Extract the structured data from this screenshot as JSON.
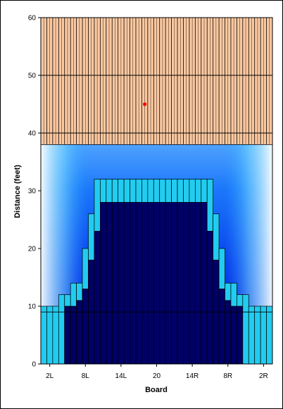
{
  "chart_data": {
    "type": "heatmap",
    "title": "",
    "xlabel": "Board",
    "ylabel": "Distance (feet)",
    "ylim": [
      0,
      60
    ],
    "yticks": [
      0,
      10,
      20,
      30,
      40,
      50,
      60
    ],
    "board_count": 39,
    "xticks": [
      {
        "board_index": 1,
        "label": "2L"
      },
      {
        "board_index": 7,
        "label": "8L"
      },
      {
        "board_index": 13,
        "label": "14L"
      },
      {
        "board_index": 19,
        "label": "20"
      },
      {
        "board_index": 25,
        "label": "14R"
      },
      {
        "board_index": 31,
        "label": "8R"
      },
      {
        "board_index": 37,
        "label": "2R"
      }
    ],
    "pin_deck": {
      "from": 38,
      "to": 60,
      "color": "#fcc8a0",
      "line_color": "#000000"
    },
    "gradient_top": 38,
    "grid_lines": [
      40,
      50
    ],
    "core_line": 9,
    "colors": {
      "core": "#000066",
      "step": "#22ccf0",
      "lane_bottom": "#0000dd",
      "lane_edge": "#e0faff"
    },
    "marker": {
      "board": 17,
      "distance": 45,
      "color": "#ff0000"
    },
    "board_profile": [
      {
        "core": 0,
        "step": 10
      },
      {
        "core": 0,
        "step": 10
      },
      {
        "core": 0,
        "step": 10
      },
      {
        "core": 0,
        "step": 12
      },
      {
        "core": 10,
        "step": 12
      },
      {
        "core": 10,
        "step": 14
      },
      {
        "core": 11,
        "step": 14
      },
      {
        "core": 13,
        "step": 20
      },
      {
        "core": 18,
        "step": 26
      },
      {
        "core": 23,
        "step": 32
      },
      {
        "core": 28,
        "step": 32
      },
      {
        "core": 28,
        "step": 32
      },
      {
        "core": 28,
        "step": 32
      },
      {
        "core": 28,
        "step": 32
      },
      {
        "core": 28,
        "step": 32
      },
      {
        "core": 28,
        "step": 32
      },
      {
        "core": 28,
        "step": 32
      },
      {
        "core": 28,
        "step": 32
      },
      {
        "core": 28,
        "step": 32
      },
      {
        "core": 28,
        "step": 32
      },
      {
        "core": 28,
        "step": 32
      },
      {
        "core": 28,
        "step": 32
      },
      {
        "core": 28,
        "step": 32
      },
      {
        "core": 28,
        "step": 32
      },
      {
        "core": 28,
        "step": 32
      },
      {
        "core": 28,
        "step": 32
      },
      {
        "core": 28,
        "step": 32
      },
      {
        "core": 28,
        "step": 32
      },
      {
        "core": 23,
        "step": 32
      },
      {
        "core": 18,
        "step": 26
      },
      {
        "core": 13,
        "step": 20
      },
      {
        "core": 11,
        "step": 14
      },
      {
        "core": 10,
        "step": 14
      },
      {
        "core": 10,
        "step": 12
      },
      {
        "core": 0,
        "step": 12
      },
      {
        "core": 0,
        "step": 10
      },
      {
        "core": 0,
        "step": 10
      },
      {
        "core": 0,
        "step": 10
      },
      {
        "core": 0,
        "step": 10
      }
    ]
  }
}
